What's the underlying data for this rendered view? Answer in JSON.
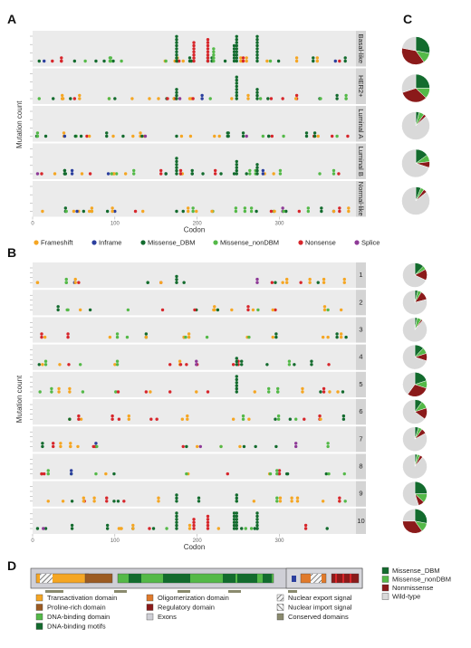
{
  "panel_labels": {
    "a": "A",
    "b": "B",
    "c": "C",
    "d": "D"
  },
  "colors": {
    "Frameshift": "#f5a623",
    "Inframe": "#2b3f9e",
    "Missense_DBM": "#136b2e",
    "Missense_nonDBM": "#54b948",
    "Nonsense": "#d7262b",
    "Splice": "#8e3a97",
    "Nonmissense": "#8b1a1a",
    "Wild-type": "#d9d9d9"
  },
  "legend": {
    "mutation_types": [
      "Frameshift",
      "Inframe",
      "Missense_DBM",
      "Missense_nonDBM",
      "Nonsense",
      "Splice"
    ],
    "pie": [
      "Missense_DBM",
      "Missense_nonDBM",
      "Nonmissense",
      "Wild-type"
    ]
  },
  "chart_data": [
    {
      "type": "scatter",
      "panel": "A",
      "xlabel": "Codon",
      "ylabel": "Mutation count",
      "xlim": [
        0,
        393
      ],
      "xticks": [
        0,
        100,
        200,
        300
      ],
      "facets": [
        "Basal-like",
        "HER2+",
        "Luminal A",
        "Luminal B",
        "Normal-like"
      ],
      "hotspots": [
        {
          "facet": "Basal-like",
          "codon": 175,
          "count": 12,
          "type": "Missense_DBM"
        },
        {
          "facet": "Basal-like",
          "codon": 196,
          "count": 7,
          "type": "Nonsense"
        },
        {
          "facet": "Basal-like",
          "codon": 213,
          "count": 8,
          "type": "Nonsense"
        },
        {
          "facet": "Basal-like",
          "codon": 220,
          "count": 5,
          "type": "Missense_nonDBM"
        },
        {
          "facet": "Basal-like",
          "codon": 245,
          "count": 6,
          "type": "Missense_DBM"
        },
        {
          "facet": "Basal-like",
          "codon": 248,
          "count": 10,
          "type": "Missense_DBM"
        },
        {
          "facet": "Basal-like",
          "codon": 273,
          "count": 9,
          "type": "Missense_DBM"
        },
        {
          "facet": "HER2+",
          "codon": 175,
          "count": 4,
          "type": "Missense_DBM"
        },
        {
          "facet": "HER2+",
          "codon": 248,
          "count": 8,
          "type": "Missense_DBM"
        },
        {
          "facet": "HER2+",
          "codon": 273,
          "count": 4,
          "type": "Missense_DBM"
        },
        {
          "facet": "Luminal A",
          "codon": 175,
          "count": 1,
          "type": "Missense_DBM"
        },
        {
          "facet": "Luminal B",
          "codon": 175,
          "count": 6,
          "type": "Missense_DBM"
        },
        {
          "facet": "Luminal B",
          "codon": 248,
          "count": 5,
          "type": "Missense_DBM"
        },
        {
          "facet": "Luminal B",
          "codon": 273,
          "count": 4,
          "type": "Missense_DBM"
        },
        {
          "facet": "Normal-like",
          "codon": 175,
          "count": 1,
          "type": "Missense_DBM"
        }
      ]
    },
    {
      "type": "pie",
      "panel": "C",
      "labels": [
        "Missense_DBM",
        "Missense_nonDBM",
        "Nonmissense",
        "Wild-type"
      ],
      "slices": [
        {
          "facet": "Basal-like",
          "values": [
            0.28,
            0.12,
            0.38,
            0.22
          ]
        },
        {
          "facet": "HER2+",
          "values": [
            0.25,
            0.12,
            0.33,
            0.3
          ]
        },
        {
          "facet": "Luminal A",
          "values": [
            0.04,
            0.06,
            0.03,
            0.87
          ]
        },
        {
          "facet": "Luminal B",
          "values": [
            0.15,
            0.08,
            0.07,
            0.7
          ]
        },
        {
          "facet": "Normal-like",
          "values": [
            0.06,
            0.04,
            0.04,
            0.86
          ]
        }
      ]
    },
    {
      "type": "scatter",
      "panel": "B",
      "xlabel": "Codon",
      "ylabel": "Mutation count",
      "xlim": [
        0,
        393
      ],
      "xticks": [
        0,
        100,
        200,
        300
      ],
      "facets": [
        "1",
        "2",
        "3",
        "4",
        "5",
        "6",
        "7",
        "8",
        "9",
        "10"
      ],
      "hotspots": [
        {
          "facet": "1",
          "codon": 175,
          "count": 3,
          "type": "Missense_DBM"
        },
        {
          "facet": "4",
          "codon": 248,
          "count": 3,
          "type": "Missense_DBM"
        },
        {
          "facet": "5",
          "codon": 248,
          "count": 6,
          "type": "Missense_DBM"
        },
        {
          "facet": "9",
          "codon": 175,
          "count": 3,
          "type": "Missense_DBM"
        },
        {
          "facet": "9",
          "codon": 248,
          "count": 3,
          "type": "Missense_DBM"
        },
        {
          "facet": "10",
          "codon": 175,
          "count": 12,
          "type": "Missense_DBM"
        },
        {
          "facet": "10",
          "codon": 196,
          "count": 4,
          "type": "Nonsense"
        },
        {
          "facet": "10",
          "codon": 213,
          "count": 5,
          "type": "Nonsense"
        },
        {
          "facet": "10",
          "codon": 245,
          "count": 7,
          "type": "Missense_DBM"
        },
        {
          "facet": "10",
          "codon": 248,
          "count": 10,
          "type": "Missense_DBM"
        },
        {
          "facet": "10",
          "codon": 273,
          "count": 8,
          "type": "Missense_DBM"
        }
      ]
    },
    {
      "type": "pie",
      "panel": "B-pies",
      "labels": [
        "Missense_DBM",
        "Missense_nonDBM",
        "Nonmissense",
        "Wild-type"
      ],
      "slices": [
        {
          "facet": "1",
          "values": [
            0.12,
            0.05,
            0.15,
            0.68
          ]
        },
        {
          "facet": "2",
          "values": [
            0.04,
            0.05,
            0.12,
            0.79
          ]
        },
        {
          "facet": "3",
          "values": [
            0.03,
            0.06,
            0.02,
            0.89
          ]
        },
        {
          "facet": "4",
          "values": [
            0.12,
            0.08,
            0.1,
            0.7
          ]
        },
        {
          "facet": "5",
          "values": [
            0.2,
            0.1,
            0.3,
            0.4
          ]
        },
        {
          "facet": "6",
          "values": [
            0.1,
            0.1,
            0.15,
            0.65
          ]
        },
        {
          "facet": "7",
          "values": [
            0.05,
            0.05,
            0.07,
            0.83
          ]
        },
        {
          "facet": "8",
          "values": [
            0.03,
            0.04,
            0.04,
            0.89
          ]
        },
        {
          "facet": "9",
          "values": [
            0.25,
            0.12,
            0.08,
            0.55
          ]
        },
        {
          "facet": "10",
          "values": [
            0.28,
            0.12,
            0.35,
            0.25
          ]
        }
      ]
    },
    {
      "type": "diagram",
      "panel": "D",
      "domains": [
        {
          "label": "Transactivation domain",
          "color": "#f5a623",
          "start": 1,
          "end": 61
        },
        {
          "label": "Proline-rich domain",
          "color": "#9c5b22",
          "start": 64,
          "end": 92
        },
        {
          "label": "DNA-binding domain",
          "color": "#54b948",
          "start": 94,
          "end": 292
        },
        {
          "label": "DNA-binding motifs",
          "color": "#136b2e",
          "start": 100,
          "end": 290
        },
        {
          "label": "Oligomerization domain",
          "color": "#e07a2b",
          "start": 325,
          "end": 356
        },
        {
          "label": "Regulatory domain",
          "color": "#8b1a1a",
          "start": 363,
          "end": 393
        },
        {
          "label": "Exons",
          "color": "#cfcfd6"
        },
        {
          "label": "Nuclear export signal",
          "pattern": "hatch"
        },
        {
          "label": "Nuclear import signal",
          "pattern": "hatch2"
        },
        {
          "label": "Conserved domains",
          "color": "#8a8a6e"
        }
      ]
    }
  ]
}
